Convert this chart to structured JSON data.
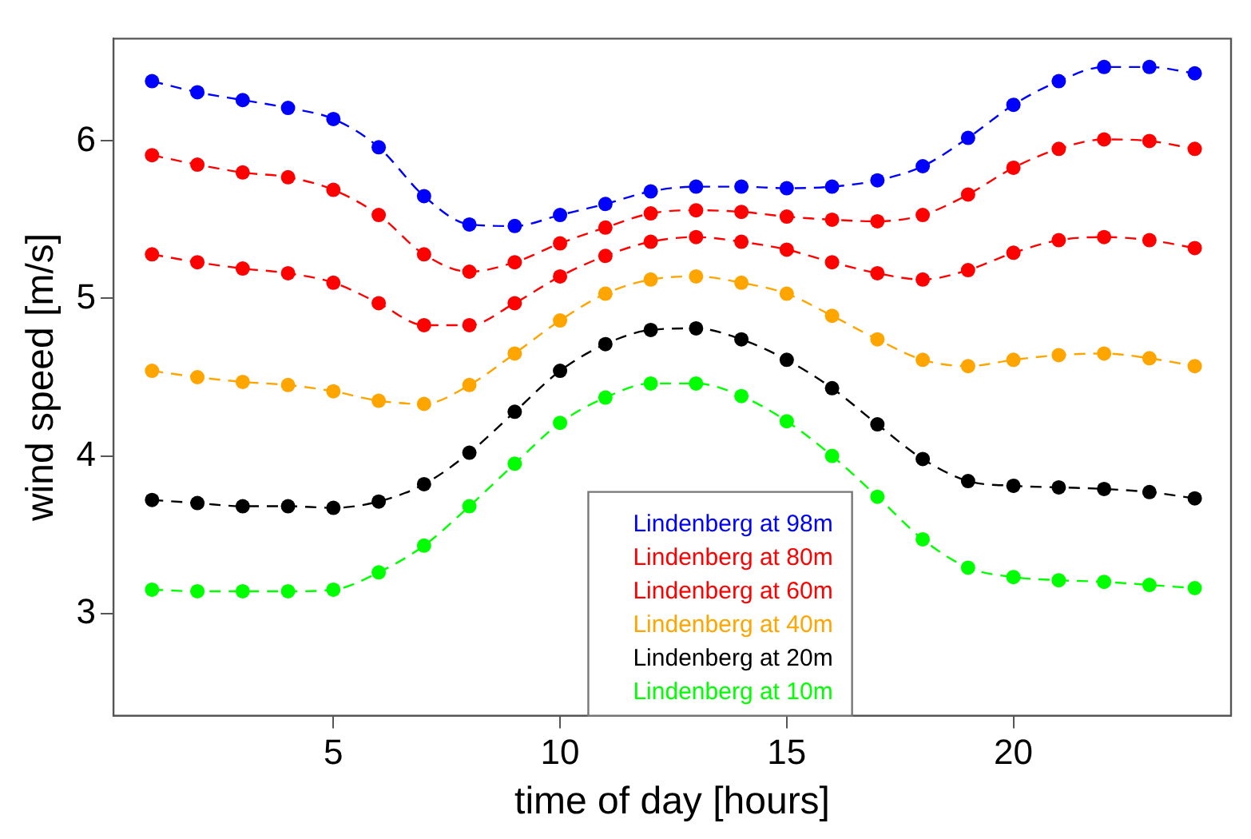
{
  "chart_data": {
    "type": "line",
    "xlabel": "time of day [hours]",
    "ylabel": "wind speed [m/s]",
    "x": [
      1,
      2,
      3,
      4,
      5,
      6,
      7,
      8,
      9,
      10,
      11,
      12,
      13,
      14,
      15,
      16,
      17,
      18,
      19,
      20,
      21,
      22,
      23,
      24
    ],
    "xlim": [
      0.15,
      24.8
    ],
    "xticks": [
      5,
      10,
      15,
      20
    ],
    "ylim": [
      2.35,
      6.65
    ],
    "yticks": [
      3,
      4,
      5,
      6
    ],
    "grid": false,
    "legend": "bottom",
    "marker": "circle",
    "line_style": "dashed",
    "series": [
      {
        "name": "Lindenberg at 98m",
        "color": "#0000ff",
        "values": [
          6.38,
          6.31,
          6.26,
          6.21,
          6.14,
          5.96,
          5.65,
          5.47,
          5.46,
          5.53,
          5.6,
          5.68,
          5.71,
          5.71,
          5.7,
          5.71,
          5.75,
          5.84,
          6.02,
          6.23,
          6.38,
          6.47,
          6.47,
          6.43
        ]
      },
      {
        "name": "Lindenberg at 80m",
        "color": "#ff0000",
        "values": [
          5.91,
          5.85,
          5.8,
          5.77,
          5.69,
          5.53,
          5.28,
          5.17,
          5.23,
          5.35,
          5.45,
          5.54,
          5.56,
          5.55,
          5.52,
          5.5,
          5.49,
          5.53,
          5.66,
          5.83,
          5.95,
          6.01,
          6,
          5.95
        ]
      },
      {
        "name": "Lindenberg at 60m",
        "color": "#ff0000",
        "values": [
          5.28,
          5.23,
          5.19,
          5.16,
          5.1,
          4.97,
          4.83,
          4.83,
          4.97,
          5.14,
          5.27,
          5.36,
          5.39,
          5.36,
          5.31,
          5.23,
          5.16,
          5.12,
          5.18,
          5.29,
          5.37,
          5.39,
          5.37,
          5.32
        ]
      },
      {
        "name": "Lindenberg at 40m",
        "color": "#ffa500",
        "values": [
          4.54,
          4.5,
          4.47,
          4.45,
          4.41,
          4.35,
          4.33,
          4.45,
          4.65,
          4.86,
          5.03,
          5.12,
          5.14,
          5.1,
          5.03,
          4.89,
          4.74,
          4.61,
          4.57,
          4.61,
          4.64,
          4.65,
          4.62,
          4.57
        ]
      },
      {
        "name": "Lindenberg at 20m",
        "color": "#000000",
        "values": [
          3.72,
          3.7,
          3.68,
          3.68,
          3.67,
          3.71,
          3.82,
          4.02,
          4.28,
          4.54,
          4.71,
          4.8,
          4.81,
          4.74,
          4.61,
          4.43,
          4.2,
          3.98,
          3.84,
          3.81,
          3.8,
          3.79,
          3.77,
          3.73
        ]
      },
      {
        "name": "Lindenberg at 10m",
        "color": "#00ff00",
        "values": [
          3.15,
          3.14,
          3.14,
          3.14,
          3.15,
          3.26,
          3.43,
          3.68,
          3.95,
          4.21,
          4.37,
          4.46,
          4.46,
          4.38,
          4.22,
          4,
          3.74,
          3.47,
          3.29,
          3.23,
          3.21,
          3.2,
          3.18,
          3.16
        ]
      }
    ]
  }
}
